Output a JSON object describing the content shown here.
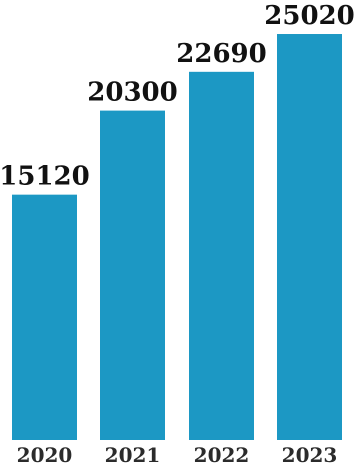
{
  "chart_data": {
    "type": "bar",
    "categories": [
      "2020",
      "2021",
      "2022",
      "2023"
    ],
    "values": [
      15120,
      20300,
      22690,
      25020
    ],
    "data_labels": [
      "15120",
      "20300",
      "22690",
      "25020"
    ],
    "title": "",
    "xlabel": "",
    "ylabel": "",
    "ylim": [
      0,
      26500
    ],
    "grid": false,
    "legend": "none",
    "colors": {
      "bar": "#1c98c4",
      "value_text": "#111111",
      "category_text": "#2b2b2b"
    }
  }
}
